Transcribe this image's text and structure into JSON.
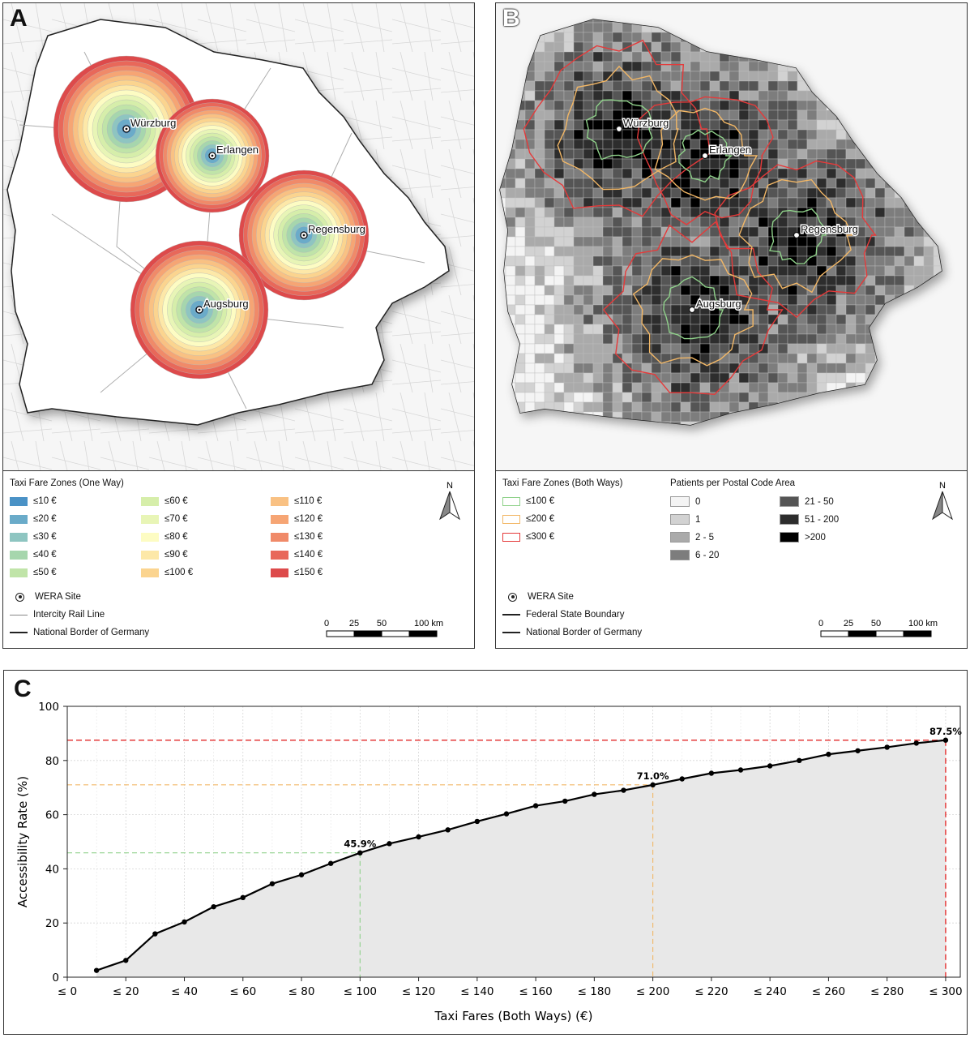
{
  "panelA": {
    "letter": "A",
    "sites": [
      {
        "name": "Würzburg"
      },
      {
        "name": "Erlangen"
      },
      {
        "name": "Regensburg"
      },
      {
        "name": "Augsburg"
      }
    ],
    "legend_title": "Taxi Fare Zones (One Way)",
    "zones": [
      {
        "label": "≤10 €",
        "color": "#4a92c6"
      },
      {
        "label": "≤20 €",
        "color": "#6aabc9"
      },
      {
        "label": "≤30 €",
        "color": "#8ec5c1"
      },
      {
        "label": "≤40 €",
        "color": "#a6d6ad"
      },
      {
        "label": "≤50 €",
        "color": "#c0e4a8"
      },
      {
        "label": "≤60 €",
        "color": "#d6eeaa"
      },
      {
        "label": "≤70 €",
        "color": "#e8f5b6"
      },
      {
        "label": "≤80 €",
        "color": "#fdfcc3"
      },
      {
        "label": "≤90 €",
        "color": "#fde8a8"
      },
      {
        "label": "≤100 €",
        "color": "#fbd48f"
      },
      {
        "label": "≤110 €",
        "color": "#f9c183"
      },
      {
        "label": "≤120 €",
        "color": "#f6a574"
      },
      {
        "label": "≤130 €",
        "color": "#f08a69"
      },
      {
        "label": "≤140 €",
        "color": "#e8685a"
      },
      {
        "label": "≤150 €",
        "color": "#dd4a4b"
      }
    ],
    "wera_site": "WERA Site",
    "rail_line": "Intercity Rail Line",
    "national_border": "National Border of Germany",
    "north": "N",
    "scale_ticks": [
      "0",
      "25",
      "50",
      "100 km"
    ]
  },
  "panelB": {
    "letter": "B",
    "sites": [
      {
        "name": "Würzburg"
      },
      {
        "name": "Erlangen"
      },
      {
        "name": "Regensburg"
      },
      {
        "name": "Augsburg"
      }
    ],
    "zones_title": "Taxi Fare Zones (Both Ways)",
    "zones": [
      {
        "label": "≤100 €",
        "color": "#8fd18a"
      },
      {
        "label": "≤200 €",
        "color": "#f2b766"
      },
      {
        "label": "≤300 €",
        "color": "#e53a3a"
      }
    ],
    "patients_title": "Patients per Postal Code Area",
    "patients": [
      {
        "label": "0",
        "color": "#f4f4f4"
      },
      {
        "label": "1",
        "color": "#d2d2d2"
      },
      {
        "label": "2 - 5",
        "color": "#aaaaaa"
      },
      {
        "label": "6 - 20",
        "color": "#7d7d7d"
      },
      {
        "label": "21 - 50",
        "color": "#555555"
      },
      {
        "label": "51 - 200",
        "color": "#2d2d2d"
      },
      {
        "label": ">200",
        "color": "#000000"
      }
    ],
    "wera_site": "WERA Site",
    "state_boundary": "Federal State Boundary",
    "national_border": "National Border of Germany",
    "north": "N",
    "scale_ticks": [
      "0",
      "25",
      "50",
      "100 km"
    ]
  },
  "panelC": {
    "letter": "C",
    "chart_data": {
      "type": "line",
      "xlabel": "Taxi Fares (Both Ways) (€)",
      "ylabel": "Accessibility Rate (%)",
      "xlim": [
        0,
        305
      ],
      "ylim": [
        0,
        100
      ],
      "x_tick_labels": [
        "≤ 0",
        "≤ 20",
        "≤ 40",
        "≤ 60",
        "≤ 80",
        "≤ 100",
        "≤ 120",
        "≤ 140",
        "≤ 160",
        "≤ 180",
        "≤ 200",
        "≤ 220",
        "≤ 240",
        "≤ 260",
        "≤ 280",
        "≤ 300"
      ],
      "x_tick_values": [
        0,
        20,
        40,
        60,
        80,
        100,
        120,
        140,
        160,
        180,
        200,
        220,
        240,
        260,
        280,
        300
      ],
      "y_ticks": [
        0,
        20,
        40,
        60,
        80,
        100
      ],
      "x": [
        10,
        20,
        30,
        40,
        50,
        60,
        70,
        80,
        90,
        100,
        110,
        120,
        130,
        140,
        150,
        160,
        170,
        180,
        190,
        200,
        210,
        220,
        230,
        240,
        250,
        260,
        270,
        280,
        290,
        300
      ],
      "y": [
        2.5,
        6.2,
        16.0,
        20.4,
        26.0,
        29.4,
        34.5,
        37.8,
        42.0,
        45.9,
        49.3,
        51.8,
        54.4,
        57.5,
        60.3,
        63.3,
        65.0,
        67.5,
        69.0,
        71.0,
        73.2,
        75.3,
        76.5,
        78.0,
        80.0,
        82.3,
        83.6,
        84.9,
        86.4,
        87.5
      ],
      "annotations": [
        {
          "x": 100,
          "y": 45.9,
          "label": "45.9%",
          "color": "#8fd18a"
        },
        {
          "x": 200,
          "y": 71.0,
          "label": "71.0%",
          "color": "#f2b766"
        },
        {
          "x": 300,
          "y": 87.5,
          "label": "87.5%",
          "color": "#e53a3a"
        }
      ],
      "grid": true,
      "fill": "#e8e8e8",
      "line_color": "#000000"
    }
  }
}
